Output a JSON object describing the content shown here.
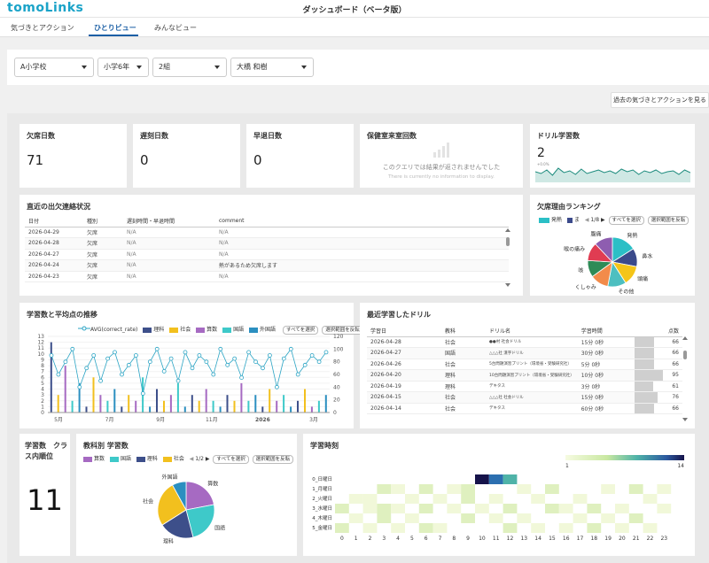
{
  "app": {
    "logo": "tomoLinks",
    "title": "ダッシュボード（ベータ版）"
  },
  "tabs": [
    {
      "label": "気づきとアクション",
      "active": false
    },
    {
      "label": "ひとりビュー",
      "active": true
    },
    {
      "label": "みんなビュー",
      "active": false
    }
  ],
  "filters": {
    "school": "A小学校",
    "grade": "小学6年",
    "class": "2組",
    "student": "大橋 和樹"
  },
  "history_button": "過去の気づきとアクションを見る",
  "metrics": {
    "absence": {
      "label": "欠席日数",
      "value": "71"
    },
    "late": {
      "label": "遅刻日数",
      "value": "0"
    },
    "early": {
      "label": "早退日数",
      "value": "0"
    },
    "nurse": {
      "label": "保健室来室回数",
      "message": "このクエリでは結果が返されませんでした",
      "sub": "There is currently no information to display."
    },
    "drill": {
      "label": "ドリル学習数",
      "value": "2",
      "sub": "+0.0%"
    }
  },
  "attendance": {
    "title": "直近の出欠連絡状況",
    "headers": [
      "日付",
      "種別",
      "遅刻時間・早退時間",
      "comment"
    ],
    "rows": [
      [
        "2026-04-29",
        "欠席",
        "N/A",
        "N/A"
      ],
      [
        "2026-04-28",
        "欠席",
        "N/A",
        "N/A"
      ],
      [
        "2026-04-27",
        "欠席",
        "N/A",
        "N/A"
      ],
      [
        "2026-04-24",
        "欠席",
        "N/A",
        "熱があるため欠席します"
      ],
      [
        "2026-04-23",
        "欠席",
        "N/A",
        "N/A"
      ]
    ]
  },
  "absence_ranking": {
    "title": "欠席理由ランキング",
    "legend": [
      "発熱",
      "ま"
    ],
    "page": "1/8",
    "btn_select_all": "すべてを選択",
    "btn_invert": "選択範囲を反転",
    "labels": [
      "発熱",
      "鼻水",
      "頭痛",
      "その他",
      "くしゃみ",
      "咳",
      "喉の痛み",
      "腹痛"
    ],
    "colors": [
      "#2bbfc6",
      "#3b4a8b",
      "#f5c518",
      "#4dbfc0",
      "#f28b4a",
      "#2e8b57",
      "#e03c52",
      "#8e5db0"
    ]
  },
  "trend": {
    "title": "学習数と平均点の推移",
    "legend": [
      {
        "name": "AVG(correct_rate)",
        "color": "#2ba4c4"
      },
      {
        "name": "理科",
        "color": "#3d4f8a"
      },
      {
        "name": "社会",
        "color": "#f2c01e"
      },
      {
        "name": "算数",
        "color": "#a66ac2"
      },
      {
        "name": "国語",
        "color": "#3ec9c9"
      },
      {
        "name": "外国語",
        "color": "#2b8fc0"
      }
    ],
    "btn_select_all": "すべてを選択",
    "btn_invert": "選択範囲を反転",
    "y_left_ticks": [
      "0",
      "1",
      "2",
      "3",
      "4",
      "5",
      "6",
      "7",
      "8",
      "9",
      "10",
      "11",
      "12",
      "13"
    ],
    "y_right_ticks": [
      "0",
      "20",
      "40",
      "60",
      "80",
      "100",
      "120"
    ],
    "x_ticks": [
      "5月",
      "7月",
      "9月",
      "11月",
      "2026",
      "3月"
    ]
  },
  "chart_data": [
    {
      "type": "bar",
      "title": "学習数と平均点の推移",
      "series": [
        {
          "name": "AVG(correct_rate)",
          "values": [
            90,
            60,
            80,
            100,
            40,
            70,
            90,
            50,
            85,
            95,
            60,
            75,
            90,
            30,
            80,
            100,
            65,
            85,
            50,
            95,
            70,
            90,
            80,
            60,
            100,
            75,
            85,
            55,
            95,
            80,
            70,
            90,
            40,
            85,
            100,
            60,
            75,
            90,
            80,
            95
          ]
        },
        {
          "name": "学習数",
          "values": [
            12,
            3,
            8,
            2,
            5,
            1,
            6,
            3,
            2,
            4,
            1,
            3,
            2,
            6,
            1,
            4,
            2,
            3,
            5,
            1,
            3,
            2,
            4,
            2,
            1,
            3,
            2,
            5,
            2,
            3,
            1,
            4,
            2,
            3,
            1,
            2,
            4,
            1,
            2,
            3
          ]
        }
      ],
      "ylim": [
        0,
        13
      ],
      "y2lim": [
        0,
        120
      ]
    }
  ],
  "recent_drill": {
    "title": "最近学習したドリル",
    "headers": [
      "学習日",
      "教科",
      "ドリル名",
      "学習時間",
      "点数"
    ],
    "rows": [
      [
        "2026-04-28",
        "社会",
        "●●村 社会ドリル",
        "15分 0秒",
        "66"
      ],
      [
        "2026-04-27",
        "国語",
        "△△△社 漢字ドリル",
        "30分 0秒",
        "66"
      ],
      [
        "2026-04-26",
        "社会",
        "5台問題演習プリント（環境省・受験研究社）",
        "5分 0秒",
        "66"
      ],
      [
        "2026-04-20",
        "理科",
        "10台問題演習プリント（環境省・受験研究社）",
        "10分 0秒",
        "95"
      ],
      [
        "2026-04-19",
        "理科",
        "デキタス",
        "3分 0秒",
        "61"
      ],
      [
        "2026-04-15",
        "社会",
        "△△△社 社会ドリル",
        "15分 0秒",
        "76"
      ],
      [
        "2026-04-14",
        "社会",
        "デキタス",
        "60分 0秒",
        "66"
      ]
    ]
  },
  "rank": {
    "title": "学習数　クラス内順位",
    "value": "11"
  },
  "subject_count": {
    "title": "教科別 学習数",
    "legend": [
      "算数",
      "国語",
      "理科",
      "社会"
    ],
    "page": "1/2",
    "btn_select_all": "すべてを選択",
    "btn_invert": "選択範囲を反転",
    "labels": [
      "算数",
      "国語",
      "理科",
      "社会",
      "外国語"
    ]
  },
  "heatmap": {
    "title": "学習時刻",
    "scale_min": "1",
    "scale_max": "14",
    "days": [
      "0_日曜日",
      "1_月曜日",
      "2_火曜日",
      "3_水曜日",
      "4_木曜日",
      "5_金曜日"
    ],
    "hours": [
      "0",
      "1",
      "2",
      "3",
      "4",
      "5",
      "6",
      "7",
      "8",
      "9",
      "10",
      "11",
      "12",
      "13",
      "14",
      "15",
      "16",
      "17",
      "18",
      "19",
      "20",
      "21",
      "22",
      "23"
    ]
  }
}
